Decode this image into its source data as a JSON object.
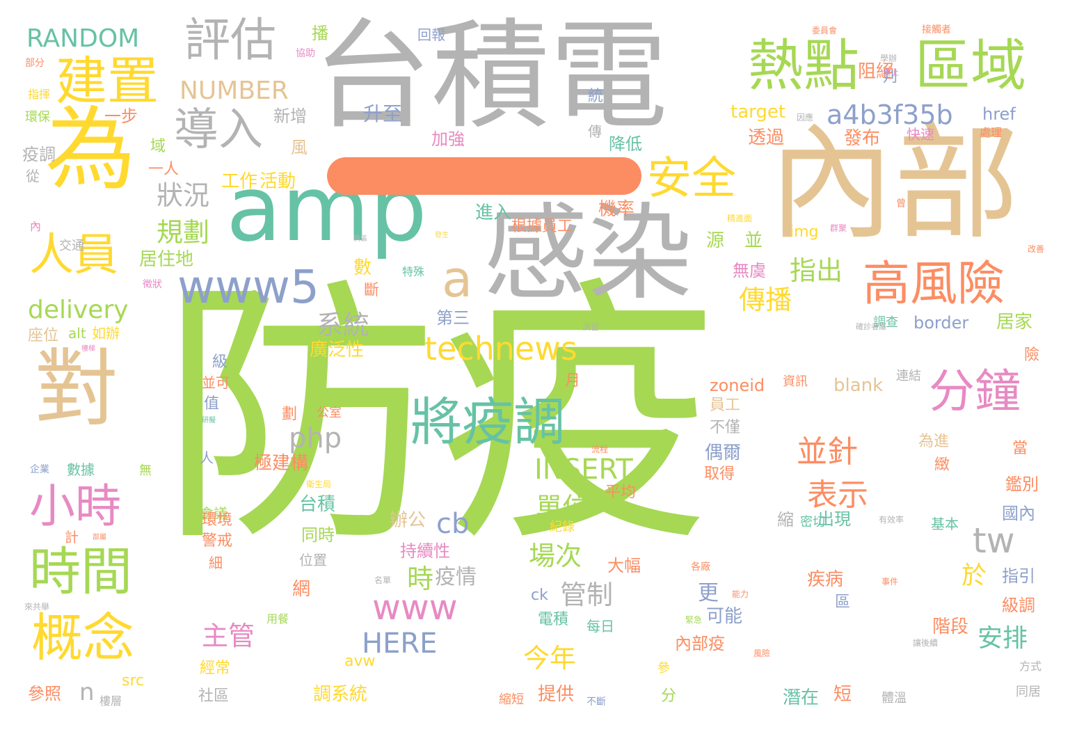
{
  "palette": {
    "green": "#a6d854",
    "gray": "#b3b3b3",
    "yellow": "#ffd92f",
    "tan": "#e5c494",
    "teal": "#66c2a5",
    "orange": "#fc8d62",
    "blue": "#8da0cb",
    "pink": "#e78ac3"
  },
  "bar_color": "#fc8d62",
  "words": [
    {
      "text": "防疫",
      "color": "green"
    },
    {
      "text": "台積電",
      "color": "gray"
    },
    {
      "text": "內部",
      "color": "tan"
    },
    {
      "text": "感染",
      "color": "gray"
    },
    {
      "text": "amp",
      "color": "teal"
    },
    {
      "text": "為",
      "color": "yellow"
    },
    {
      "text": "對",
      "color": "tan"
    },
    {
      "text": "熱點",
      "color": "green"
    },
    {
      "text": "區域",
      "color": "green"
    },
    {
      "text": "高風險",
      "color": "orange"
    },
    {
      "text": "將疫調",
      "color": "teal"
    },
    {
      "text": "分鐘",
      "color": "pink"
    },
    {
      "text": "www5",
      "color": "blue"
    },
    {
      "text": "建置",
      "color": "yellow"
    },
    {
      "text": "評估",
      "color": "gray"
    },
    {
      "text": "導入",
      "color": "gray"
    },
    {
      "text": "安全",
      "color": "yellow"
    },
    {
      "text": "人員",
      "color": "yellow"
    },
    {
      "text": "小時",
      "color": "pink"
    },
    {
      "text": "時間",
      "color": "green"
    },
    {
      "text": "概念",
      "color": "yellow"
    },
    {
      "text": "technews",
      "color": "yellow"
    },
    {
      "text": "a4b3f35b",
      "color": "blue"
    },
    {
      "text": "RANDOM",
      "color": "teal"
    },
    {
      "text": "NUMBER",
      "color": "tan"
    },
    {
      "text": "a",
      "color": "tan"
    },
    {
      "text": "www",
      "color": "pink"
    },
    {
      "text": "tw",
      "color": "gray"
    },
    {
      "text": "delivery",
      "color": "green"
    },
    {
      "text": "php",
      "color": "gray"
    },
    {
      "text": "INSERT",
      "color": "green"
    },
    {
      "text": "HERE",
      "color": "blue"
    },
    {
      "text": "cb",
      "color": "blue"
    },
    {
      "text": "並針",
      "color": "orange"
    },
    {
      "text": "表示",
      "color": "orange"
    },
    {
      "text": "傳播",
      "color": "yellow"
    },
    {
      "text": "指出",
      "color": "green"
    },
    {
      "text": "系統",
      "color": "gray"
    },
    {
      "text": "狀況",
      "color": "gray"
    },
    {
      "text": "規劃",
      "color": "green"
    },
    {
      "text": "單位",
      "color": "green"
    },
    {
      "text": "場次",
      "color": "green"
    },
    {
      "text": "管制",
      "color": "gray"
    },
    {
      "text": "主管",
      "color": "pink"
    },
    {
      "text": "今年",
      "color": "yellow"
    },
    {
      "text": "安排",
      "color": "teal"
    },
    {
      "text": "於",
      "color": "yellow"
    },
    {
      "text": "時",
      "color": "green"
    },
    {
      "text": "疫情",
      "color": "gray"
    },
    {
      "text": "n",
      "color": "gray"
    },
    {
      "text": "工作",
      "color": "yellow"
    },
    {
      "text": "活動",
      "color": "yellow"
    },
    {
      "text": "居住地",
      "color": "green"
    },
    {
      "text": "廣泛性",
      "color": "yellow"
    },
    {
      "text": "第三",
      "color": "blue"
    },
    {
      "text": "target",
      "color": "yellow"
    },
    {
      "text": "href",
      "color": "blue"
    },
    {
      "text": "border",
      "color": "blue"
    },
    {
      "text": "zoneid",
      "color": "orange"
    },
    {
      "text": "blank",
      "color": "tan"
    },
    {
      "text": "升至",
      "color": "blue"
    },
    {
      "text": "加強",
      "color": "pink"
    },
    {
      "text": "降低",
      "color": "teal"
    },
    {
      "text": "新增",
      "color": "gray"
    },
    {
      "text": "風",
      "color": "tan"
    },
    {
      "text": "疫調",
      "color": "gray"
    },
    {
      "text": "一步",
      "color": "orange"
    },
    {
      "text": "域",
      "color": "green"
    },
    {
      "text": "一人",
      "color": "orange"
    },
    {
      "text": "從",
      "color": "gray"
    },
    {
      "text": "環保",
      "color": "green"
    },
    {
      "text": "指揮",
      "color": "yellow"
    },
    {
      "text": "部分",
      "color": "orange"
    },
    {
      "text": "協助",
      "color": "pink"
    },
    {
      "text": "回報",
      "color": "blue"
    },
    {
      "text": "播",
      "color": "green"
    },
    {
      "text": "統",
      "color": "blue"
    },
    {
      "text": "傳",
      "color": "gray"
    },
    {
      "text": "阻絕",
      "color": "orange"
    },
    {
      "text": "判",
      "color": "blue"
    },
    {
      "text": "透過",
      "color": "orange"
    },
    {
      "text": "發布",
      "color": "orange"
    },
    {
      "text": "快速",
      "color": "pink"
    },
    {
      "text": "處理",
      "color": "orange"
    },
    {
      "text": "機率",
      "color": "orange"
    },
    {
      "text": "根據員工",
      "color": "orange"
    },
    {
      "text": "進入",
      "color": "teal"
    },
    {
      "text": "並",
      "color": "green"
    },
    {
      "text": "源",
      "color": "green"
    },
    {
      "text": "無虞",
      "color": "pink"
    },
    {
      "text": "img",
      "color": "yellow"
    },
    {
      "text": "數",
      "color": "yellow"
    },
    {
      "text": "斷",
      "color": "orange"
    },
    {
      "text": "特殊",
      "color": "teal"
    },
    {
      "text": "居家",
      "color": "green"
    },
    {
      "text": "險",
      "color": "orange"
    },
    {
      "text": "調查",
      "color": "teal"
    },
    {
      "text": "交通",
      "color": "gray"
    },
    {
      "text": "徵狀",
      "color": "pink"
    },
    {
      "text": "內",
      "color": "pink"
    },
    {
      "text": "座位",
      "color": "tan"
    },
    {
      "text": "alt",
      "color": "green"
    },
    {
      "text": "如辦",
      "color": "yellow"
    },
    {
      "text": "級",
      "color": "blue"
    },
    {
      "text": "並可",
      "color": "orange"
    },
    {
      "text": "值",
      "color": "blue"
    },
    {
      "text": "月",
      "color": "orange"
    },
    {
      "text": "劃",
      "color": "orange"
    },
    {
      "text": "公室",
      "color": "orange"
    },
    {
      "text": "資訊",
      "color": "orange"
    },
    {
      "text": "連結",
      "color": "gray"
    },
    {
      "text": "員工",
      "color": "tan"
    },
    {
      "text": "不僅",
      "color": "gray"
    },
    {
      "text": "偶爾",
      "color": "blue"
    },
    {
      "text": "取得",
      "color": "orange"
    },
    {
      "text": "為進",
      "color": "tan"
    },
    {
      "text": "當",
      "color": "orange"
    },
    {
      "text": "緻",
      "color": "orange"
    },
    {
      "text": "鑑別",
      "color": "orange"
    },
    {
      "text": "國內",
      "color": "blue"
    },
    {
      "text": "極建構",
      "color": "orange"
    },
    {
      "text": "台積",
      "color": "teal"
    },
    {
      "text": "平均",
      "color": "orange"
    },
    {
      "text": "會議",
      "color": "green"
    },
    {
      "text": "人",
      "color": "blue"
    },
    {
      "text": "數據",
      "color": "teal"
    },
    {
      "text": "無",
      "color": "green"
    },
    {
      "text": "企業",
      "color": "blue"
    },
    {
      "text": "環境",
      "color": "orange"
    },
    {
      "text": "警戒",
      "color": "orange"
    },
    {
      "text": "計",
      "color": "orange"
    },
    {
      "text": "細",
      "color": "orange"
    },
    {
      "text": "辦公",
      "color": "tan"
    },
    {
      "text": "同時",
      "color": "green"
    },
    {
      "text": "紀錄",
      "color": "yellow"
    },
    {
      "text": "縮",
      "color": "gray"
    },
    {
      "text": "密切",
      "color": "teal"
    },
    {
      "text": "出現",
      "color": "teal"
    },
    {
      "text": "基本",
      "color": "teal"
    },
    {
      "text": "持續性",
      "color": "pink"
    },
    {
      "text": "位置",
      "color": "gray"
    },
    {
      "text": "大幅",
      "color": "orange"
    },
    {
      "text": "網",
      "color": "orange"
    },
    {
      "text": "疾病",
      "color": "orange"
    },
    {
      "text": "區",
      "color": "blue"
    },
    {
      "text": "指引",
      "color": "blue"
    },
    {
      "text": "級調",
      "color": "orange"
    },
    {
      "text": "更",
      "color": "blue"
    },
    {
      "text": "可能",
      "color": "blue"
    },
    {
      "text": "ck",
      "color": "blue"
    },
    {
      "text": "電積",
      "color": "teal"
    },
    {
      "text": "每日",
      "color": "teal"
    },
    {
      "text": "階段",
      "color": "orange"
    },
    {
      "text": "內部疫",
      "color": "orange"
    },
    {
      "text": "avw",
      "color": "yellow"
    },
    {
      "text": "src",
      "color": "yellow"
    },
    {
      "text": "經常",
      "color": "yellow"
    },
    {
      "text": "社區",
      "color": "gray"
    },
    {
      "text": "參照",
      "color": "orange"
    },
    {
      "text": "樓層",
      "color": "gray"
    },
    {
      "text": "調系統",
      "color": "yellow"
    },
    {
      "text": "提供",
      "color": "orange"
    },
    {
      "text": "縮短",
      "color": "orange"
    },
    {
      "text": "不斷",
      "color": "blue"
    },
    {
      "text": "分",
      "color": "green"
    },
    {
      "text": "參",
      "color": "yellow"
    },
    {
      "text": "潛在",
      "color": "teal"
    },
    {
      "text": "短",
      "color": "orange"
    },
    {
      "text": "體溫",
      "color": "gray"
    },
    {
      "text": "同居",
      "color": "gray"
    },
    {
      "text": "方式",
      "color": "gray"
    },
    {
      "text": "用餐",
      "color": "green"
    },
    {
      "text": "委員會",
      "color": "orange"
    },
    {
      "text": "接觸者",
      "color": "orange"
    },
    {
      "text": "桌上",
      "color": "pink"
    },
    {
      "text": "學辦",
      "color": "gray"
    },
    {
      "text": "因應",
      "color": "gray"
    },
    {
      "text": "曾",
      "color": "orange"
    },
    {
      "text": "群聚",
      "color": "pink"
    },
    {
      "text": "改善",
      "color": "orange"
    },
    {
      "text": "發生",
      "color": "yellow"
    },
    {
      "text": "病區",
      "color": "gray"
    },
    {
      "text": "演習",
      "color": "gray"
    },
    {
      "text": "確診者屬",
      "color": "gray"
    },
    {
      "text": "有效率",
      "color": "gray"
    },
    {
      "text": "事件",
      "color": "orange"
    },
    {
      "text": "能力",
      "color": "orange"
    },
    {
      "text": "緊急",
      "color": "green"
    },
    {
      "text": "風險",
      "color": "orange"
    },
    {
      "text": "讓後續",
      "color": "gray"
    },
    {
      "text": "名單",
      "color": "gray"
    },
    {
      "text": "各廠",
      "color": "orange"
    },
    {
      "text": "衛生局",
      "color": "yellow"
    },
    {
      "text": "流程",
      "color": "orange"
    },
    {
      "text": "研擬",
      "color": "teal"
    },
    {
      "text": "部屬",
      "color": "orange"
    },
    {
      "text": "來共舉",
      "color": "gray"
    },
    {
      "text": "精進面",
      "color": "yellow"
    },
    {
      "text": "樓梯",
      "color": "pink"
    }
  ]
}
